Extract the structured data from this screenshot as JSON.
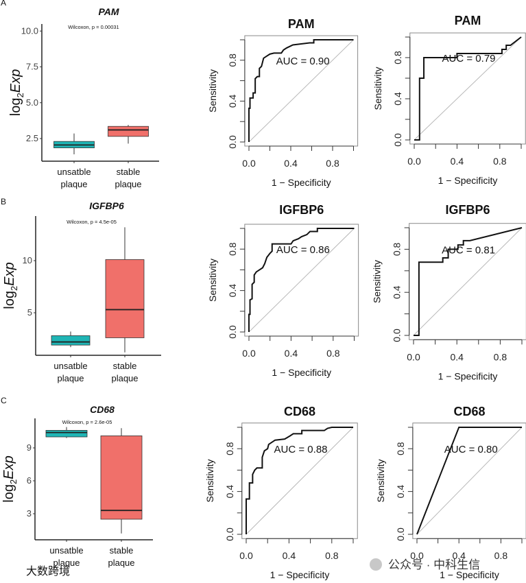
{
  "panel_labels": [
    "A",
    "B",
    "C"
  ],
  "watermarks": [
    "大数跨境",
    "公众号 · 中科生信"
  ],
  "colors": {
    "unstable": "#1fb5b5",
    "stable": "#f0706a",
    "diagonal": "#b8b8b8",
    "curve": "#111111"
  },
  "chart_data": [
    {
      "type": "box",
      "row": 0,
      "title": "PAM",
      "annotation": "Wilcoxon, p = 0.00031",
      "ylabel": {
        "base": "log",
        "sub": "2",
        "italic": "Exp"
      },
      "yticks": [
        2.5,
        5.0,
        7.5,
        10.0
      ],
      "ytick_labels": [
        "2.5",
        "5.0",
        "7.5",
        "10.0"
      ],
      "categories": [
        [
          "unsatble",
          "plaque"
        ],
        [
          "stable",
          "plaque"
        ]
      ],
      "boxes": [
        {
          "min": 1.4,
          "q1": 1.85,
          "median": 2.05,
          "q3": 2.3,
          "max": 2.85
        },
        {
          "min": 2.15,
          "q1": 2.65,
          "median": 3.1,
          "q3": 3.35,
          "max": 3.45
        }
      ]
    },
    {
      "type": "line",
      "row": 0,
      "col": 0,
      "title": "PAM",
      "auc_label": "AUC = 0.90",
      "xlabel": "1 − Specificity",
      "ylabel": "Sensitivity",
      "xticks": [
        0,
        0.2,
        0.4,
        0.6,
        0.8,
        1.0
      ],
      "xtick_labels": [
        "0.0",
        "0.4",
        "0.8"
      ],
      "yticks": [
        0,
        0.2,
        0.4,
        0.6,
        0.8,
        1.0
      ],
      "ytick_labels": [
        "0.0",
        "0.4",
        "0.8"
      ],
      "points": [
        [
          0,
          0
        ],
        [
          0,
          0.33
        ],
        [
          0.01,
          0.33
        ],
        [
          0.01,
          0.43
        ],
        [
          0.04,
          0.43
        ],
        [
          0.04,
          0.48
        ],
        [
          0.06,
          0.48
        ],
        [
          0.06,
          0.62
        ],
        [
          0.08,
          0.64
        ],
        [
          0.1,
          0.64
        ],
        [
          0.1,
          0.72
        ],
        [
          0.12,
          0.74
        ],
        [
          0.13,
          0.78
        ],
        [
          0.14,
          0.82
        ],
        [
          0.17,
          0.84
        ],
        [
          0.2,
          0.86
        ],
        [
          0.24,
          0.87
        ],
        [
          0.31,
          0.87
        ],
        [
          0.33,
          0.9
        ],
        [
          0.36,
          0.92
        ],
        [
          0.42,
          0.95
        ],
        [
          0.58,
          0.97
        ],
        [
          0.62,
          0.97
        ],
        [
          0.62,
          1
        ],
        [
          1,
          1
        ]
      ]
    },
    {
      "type": "line",
      "row": 0,
      "col": 1,
      "title": "PAM",
      "auc_label": "AUC = 0.79",
      "xlabel": "1 − Specificity",
      "ylabel": "Sensitivity",
      "xticks": [
        0,
        0.2,
        0.4,
        0.6,
        0.8,
        1.0
      ],
      "xtick_labels": [
        "0.0",
        "0.4",
        "0.8"
      ],
      "yticks": [
        0,
        0.2,
        0.4,
        0.6,
        0.8,
        1.0
      ],
      "ytick_labels": [
        "0.0",
        "0.4",
        "0.8"
      ],
      "points": [
        [
          0,
          0
        ],
        [
          0.05,
          0
        ],
        [
          0.05,
          0.6
        ],
        [
          0.09,
          0.6
        ],
        [
          0.09,
          0.8
        ],
        [
          0.4,
          0.8
        ],
        [
          0.4,
          0.84
        ],
        [
          0.82,
          0.84
        ],
        [
          0.82,
          0.88
        ],
        [
          0.86,
          0.88
        ],
        [
          0.86,
          0.92
        ],
        [
          0.9,
          0.92
        ],
        [
          1,
          1
        ]
      ]
    },
    {
      "type": "box",
      "row": 1,
      "title": "IGFBP6",
      "annotation": "Wilcoxon, p = 4.5e-05",
      "ylabel": {
        "base": "log",
        "sub": "2",
        "italic": "Exp"
      },
      "yticks": [
        5,
        10
      ],
      "ytick_labels": [
        "5",
        "10"
      ],
      "categories": [
        [
          "unsatble",
          "plaque"
        ],
        [
          "stable",
          "plaque"
        ]
      ],
      "boxes": [
        {
          "min": 1.7,
          "q1": 1.9,
          "median": 2.2,
          "q3": 2.8,
          "max": 3.2
        },
        {
          "min": 1.2,
          "q1": 2.6,
          "median": 5.3,
          "q3": 10.1,
          "max": 13.2
        }
      ]
    },
    {
      "type": "line",
      "row": 1,
      "col": 0,
      "title": "IGFBP6",
      "auc_label": "AUC = 0.86",
      "xlabel": "1 − Specificity",
      "ylabel": "Sensitivity",
      "xticks": [
        0,
        0.2,
        0.4,
        0.6,
        0.8,
        1.0
      ],
      "xtick_labels": [
        "0.0",
        "0.4",
        "0.8"
      ],
      "yticks": [
        0,
        0.2,
        0.4,
        0.6,
        0.8,
        1.0
      ],
      "ytick_labels": [
        "0.0",
        "0.4",
        "0.8"
      ],
      "points": [
        [
          0,
          0
        ],
        [
          0,
          0.17
        ],
        [
          0.01,
          0.17
        ],
        [
          0.01,
          0.31
        ],
        [
          0.03,
          0.32
        ],
        [
          0.03,
          0.46
        ],
        [
          0.05,
          0.48
        ],
        [
          0.05,
          0.55
        ],
        [
          0.07,
          0.58
        ],
        [
          0.1,
          0.6
        ],
        [
          0.13,
          0.62
        ],
        [
          0.15,
          0.66
        ],
        [
          0.17,
          0.72
        ],
        [
          0.2,
          0.76
        ],
        [
          0.22,
          0.78
        ],
        [
          0.22,
          0.85
        ],
        [
          0.4,
          0.85
        ],
        [
          0.42,
          0.88
        ],
        [
          0.47,
          0.9
        ],
        [
          0.5,
          0.92
        ],
        [
          0.55,
          0.94
        ],
        [
          0.58,
          0.97
        ],
        [
          0.65,
          0.97
        ],
        [
          0.65,
          1
        ],
        [
          1,
          1
        ]
      ]
    },
    {
      "type": "line",
      "row": 1,
      "col": 1,
      "title": "IGFBP6",
      "auc_label": "AUC = 0.81",
      "xlabel": "1 − Specificity",
      "ylabel": "Sensitivity",
      "xticks": [
        0,
        0.2,
        0.4,
        0.6,
        0.8,
        1.0
      ],
      "xtick_labels": [
        "0.0",
        "0.4",
        "0.8"
      ],
      "yticks": [
        0,
        0.2,
        0.4,
        0.6,
        0.8,
        1.0
      ],
      "ytick_labels": [
        "0.0",
        "0.4",
        "0.8"
      ],
      "points": [
        [
          0,
          0
        ],
        [
          0.05,
          0
        ],
        [
          0.05,
          0.68
        ],
        [
          0.27,
          0.68
        ],
        [
          0.27,
          0.72
        ],
        [
          0.32,
          0.72
        ],
        [
          0.32,
          0.8
        ],
        [
          0.41,
          0.8
        ],
        [
          0.41,
          0.84
        ],
        [
          0.46,
          0.84
        ],
        [
          0.46,
          0.88
        ],
        [
          0.52,
          0.88
        ],
        [
          1,
          1
        ]
      ]
    },
    {
      "type": "box",
      "row": 2,
      "title": "CD68",
      "annotation": "Wilcoxon, p = 2.6e-05",
      "ylabel": {
        "base": "log",
        "sub": "2",
        "italic": "Exp"
      },
      "yticks": [
        3,
        6,
        9
      ],
      "ytick_labels": [
        "3",
        "6",
        "9"
      ],
      "categories": [
        [
          "unsatble",
          "plaque"
        ],
        [
          "stable",
          "plaque"
        ]
      ],
      "boxes": [
        {
          "min": 9.9,
          "q1": 10.0,
          "median": 10.4,
          "q3": 10.6,
          "max": 10.9
        },
        {
          "min": 1.2,
          "q1": 2.5,
          "median": 3.3,
          "q3": 10.1,
          "max": 10.8
        }
      ]
    },
    {
      "type": "line",
      "row": 2,
      "col": 0,
      "title": "CD68",
      "auc_label": "AUC = 0.88",
      "xlabel": "1 − Specificity",
      "ylabel": "Sensitivity",
      "xticks": [
        0,
        0.2,
        0.4,
        0.6,
        0.8,
        1.0
      ],
      "xtick_labels": [
        "0.0",
        "0.4",
        "0.8"
      ],
      "yticks": [
        0,
        0.2,
        0.4,
        0.6,
        0.8,
        1.0
      ],
      "ytick_labels": [
        "0.0",
        "0.4",
        "0.8"
      ],
      "points": [
        [
          0,
          0
        ],
        [
          0,
          0.33
        ],
        [
          0.03,
          0.33
        ],
        [
          0.03,
          0.48
        ],
        [
          0.06,
          0.48
        ],
        [
          0.06,
          0.56
        ],
        [
          0.08,
          0.6
        ],
        [
          0.1,
          0.62
        ],
        [
          0.15,
          0.62
        ],
        [
          0.15,
          0.72
        ],
        [
          0.17,
          0.78
        ],
        [
          0.2,
          0.8
        ],
        [
          0.21,
          0.84
        ],
        [
          0.24,
          0.86
        ],
        [
          0.27,
          0.88
        ],
        [
          0.36,
          0.89
        ],
        [
          0.41,
          0.92
        ],
        [
          0.44,
          0.94
        ],
        [
          0.52,
          0.94
        ],
        [
          0.52,
          0.97
        ],
        [
          0.73,
          0.97
        ],
        [
          0.76,
          0.99
        ],
        [
          0.8,
          1
        ],
        [
          1,
          1
        ]
      ]
    },
    {
      "type": "line",
      "row": 2,
      "col": 1,
      "title": "CD68",
      "auc_label": "AUC = 0.80",
      "xlabel": "1 − Specificity",
      "ylabel": "Sensitivity",
      "xticks": [
        0,
        0.2,
        0.4,
        0.6,
        0.8,
        1.0
      ],
      "xtick_labels": [
        "0.0",
        "0.4",
        "0.8"
      ],
      "yticks": [
        0,
        0.2,
        0.4,
        0.6,
        0.8,
        1.0
      ],
      "ytick_labels": [
        "0.0",
        "0.4",
        "0.8"
      ],
      "points": [
        [
          0,
          0
        ],
        [
          0.4,
          1
        ],
        [
          1,
          1
        ]
      ]
    }
  ]
}
